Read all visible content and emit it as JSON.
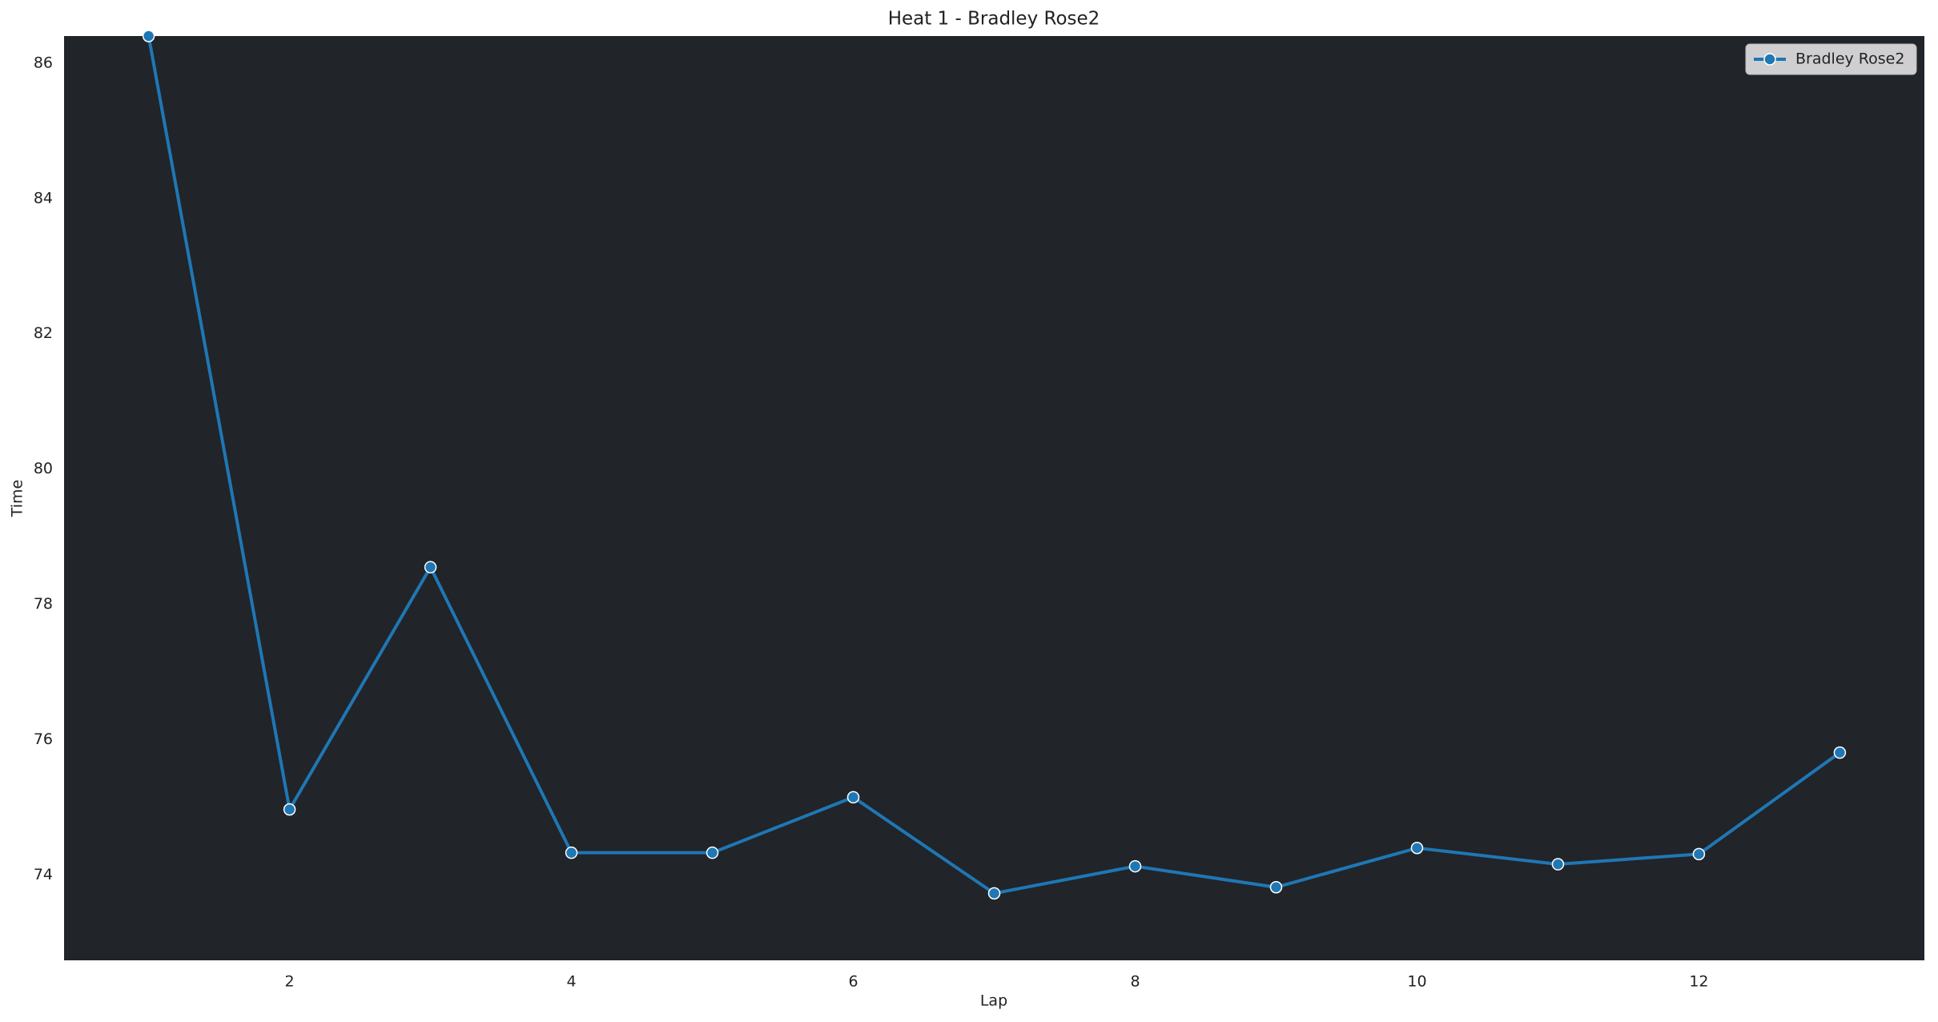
{
  "chart_data": {
    "type": "line",
    "title": "Heat 1 - Bradley Rose2",
    "x_label": "Lap",
    "y_label": "Time",
    "x": [
      1,
      2,
      3,
      4,
      5,
      6,
      7,
      8,
      9,
      10,
      11,
      12,
      13
    ],
    "series": [
      {
        "name": "Bradley Rose2",
        "color": "#1f77b4",
        "values": [
          86.4,
          74.97,
          78.55,
          74.33,
          74.33,
          75.15,
          73.73,
          74.13,
          73.82,
          74.4,
          74.16,
          74.31,
          75.81
        ]
      }
    ],
    "xlim": [
      0.4,
      13.6
    ],
    "ylim": [
      72.74,
      86.4
    ],
    "xticks": [
      2,
      4,
      6,
      8,
      10,
      12
    ],
    "yticks": [
      74,
      76,
      78,
      80,
      82,
      84,
      86
    ],
    "grid": false,
    "legend": "upper right",
    "background": "#212429",
    "marker": "o"
  }
}
